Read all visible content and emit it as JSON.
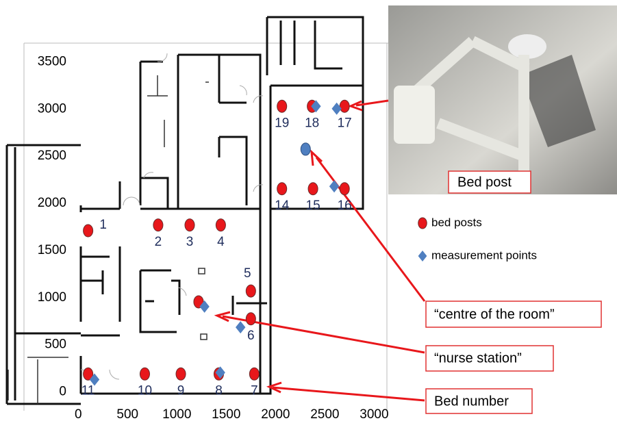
{
  "chart_data": {
    "type": "scatter",
    "xlim": [
      -550,
      3150
    ],
    "ylim": [
      -200,
      3700
    ],
    "xticks": [
      0,
      500,
      1000,
      1500,
      2000,
      2500,
      3000
    ],
    "yticks": [
      0,
      500,
      1000,
      1500,
      2000,
      2500,
      3000,
      3500
    ],
    "series": [
      {
        "name": "bed posts",
        "color": "#e8171b",
        "marker": "circle",
        "x": [
          100,
          810,
          1130,
          1445,
          1750,
          1750,
          1220,
          1785,
          1425,
          1040,
          675,
          100,
          2065,
          2380,
          2700,
          2700,
          2370,
          2065
        ],
        "values": [
          1710,
          1770,
          1770,
          1770,
          1070,
          775,
          955,
          190,
          190,
          190,
          190,
          190,
          2155,
          2155,
          2155,
          3030,
          3030,
          3030
        ],
        "labels": [
          "1",
          "2",
          "3",
          "4",
          "5",
          "6",
          null,
          "7",
          "8",
          "9",
          "10",
          "11",
          "14",
          "15",
          "16",
          "17",
          "18",
          "19"
        ]
      },
      {
        "name": "measurement points",
        "color": "#4f7fc0",
        "marker": "diamond",
        "x": [
          165,
          1280,
          1645,
          1440,
          2410,
          2620,
          2595
        ],
        "values": [
          130,
          905,
          685,
          205,
          3030,
          3005,
          2180
        ]
      }
    ],
    "annotations": [
      {
        "text": "“centre of the room”",
        "x": 2305,
        "y": 2575
      },
      {
        "text": "“nurse station”"
      },
      {
        "text": "Bed number"
      },
      {
        "text": "Bed post"
      }
    ]
  }
}
